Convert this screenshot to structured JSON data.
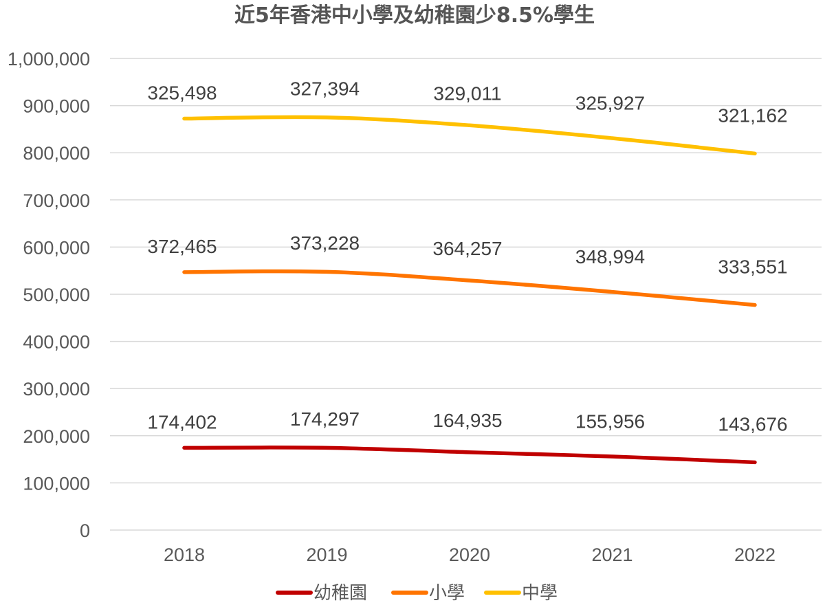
{
  "chart_data": {
    "type": "line",
    "title": "近5年香港中小學及幼稚園少8.5%學生",
    "categories": [
      "2018",
      "2019",
      "2020",
      "2021",
      "2022"
    ],
    "ylim": [
      0,
      1000000
    ],
    "y_ticks": [
      0,
      100000,
      200000,
      300000,
      400000,
      500000,
      600000,
      700000,
      800000,
      900000,
      1000000
    ],
    "y_tick_labels": [
      "0",
      "100,000",
      "200,000",
      "300,000",
      "400,000",
      "500,000",
      "600,000",
      "700,000",
      "800,000",
      "900,000",
      "1,000,000"
    ],
    "stacked": true,
    "grid": true,
    "legend_position": "bottom",
    "series": [
      {
        "name": "幼稚園",
        "color": "#c00000",
        "values": [
          174402,
          174297,
          164935,
          155956,
          143676
        ],
        "labels": [
          "174,402",
          "174,297",
          "164,935",
          "155,956",
          "143,676"
        ],
        "cumulative": [
          174402,
          174297,
          164935,
          155956,
          143676
        ]
      },
      {
        "name": "小學",
        "color": "#ff7400",
        "values": [
          372465,
          373228,
          364257,
          348994,
          333551
        ],
        "labels": [
          "372,465",
          "373,228",
          "364,257",
          "348,994",
          "333,551"
        ],
        "cumulative": [
          546867,
          547525,
          529192,
          504950,
          477227
        ]
      },
      {
        "name": "中學",
        "color": "#ffc000",
        "values": [
          325498,
          327394,
          329011,
          325927,
          321162
        ],
        "labels": [
          "325,498",
          "327,394",
          "329,011",
          "325,927",
          "321,162"
        ],
        "cumulative": [
          872365,
          874919,
          858203,
          830877,
          798389
        ]
      }
    ]
  }
}
